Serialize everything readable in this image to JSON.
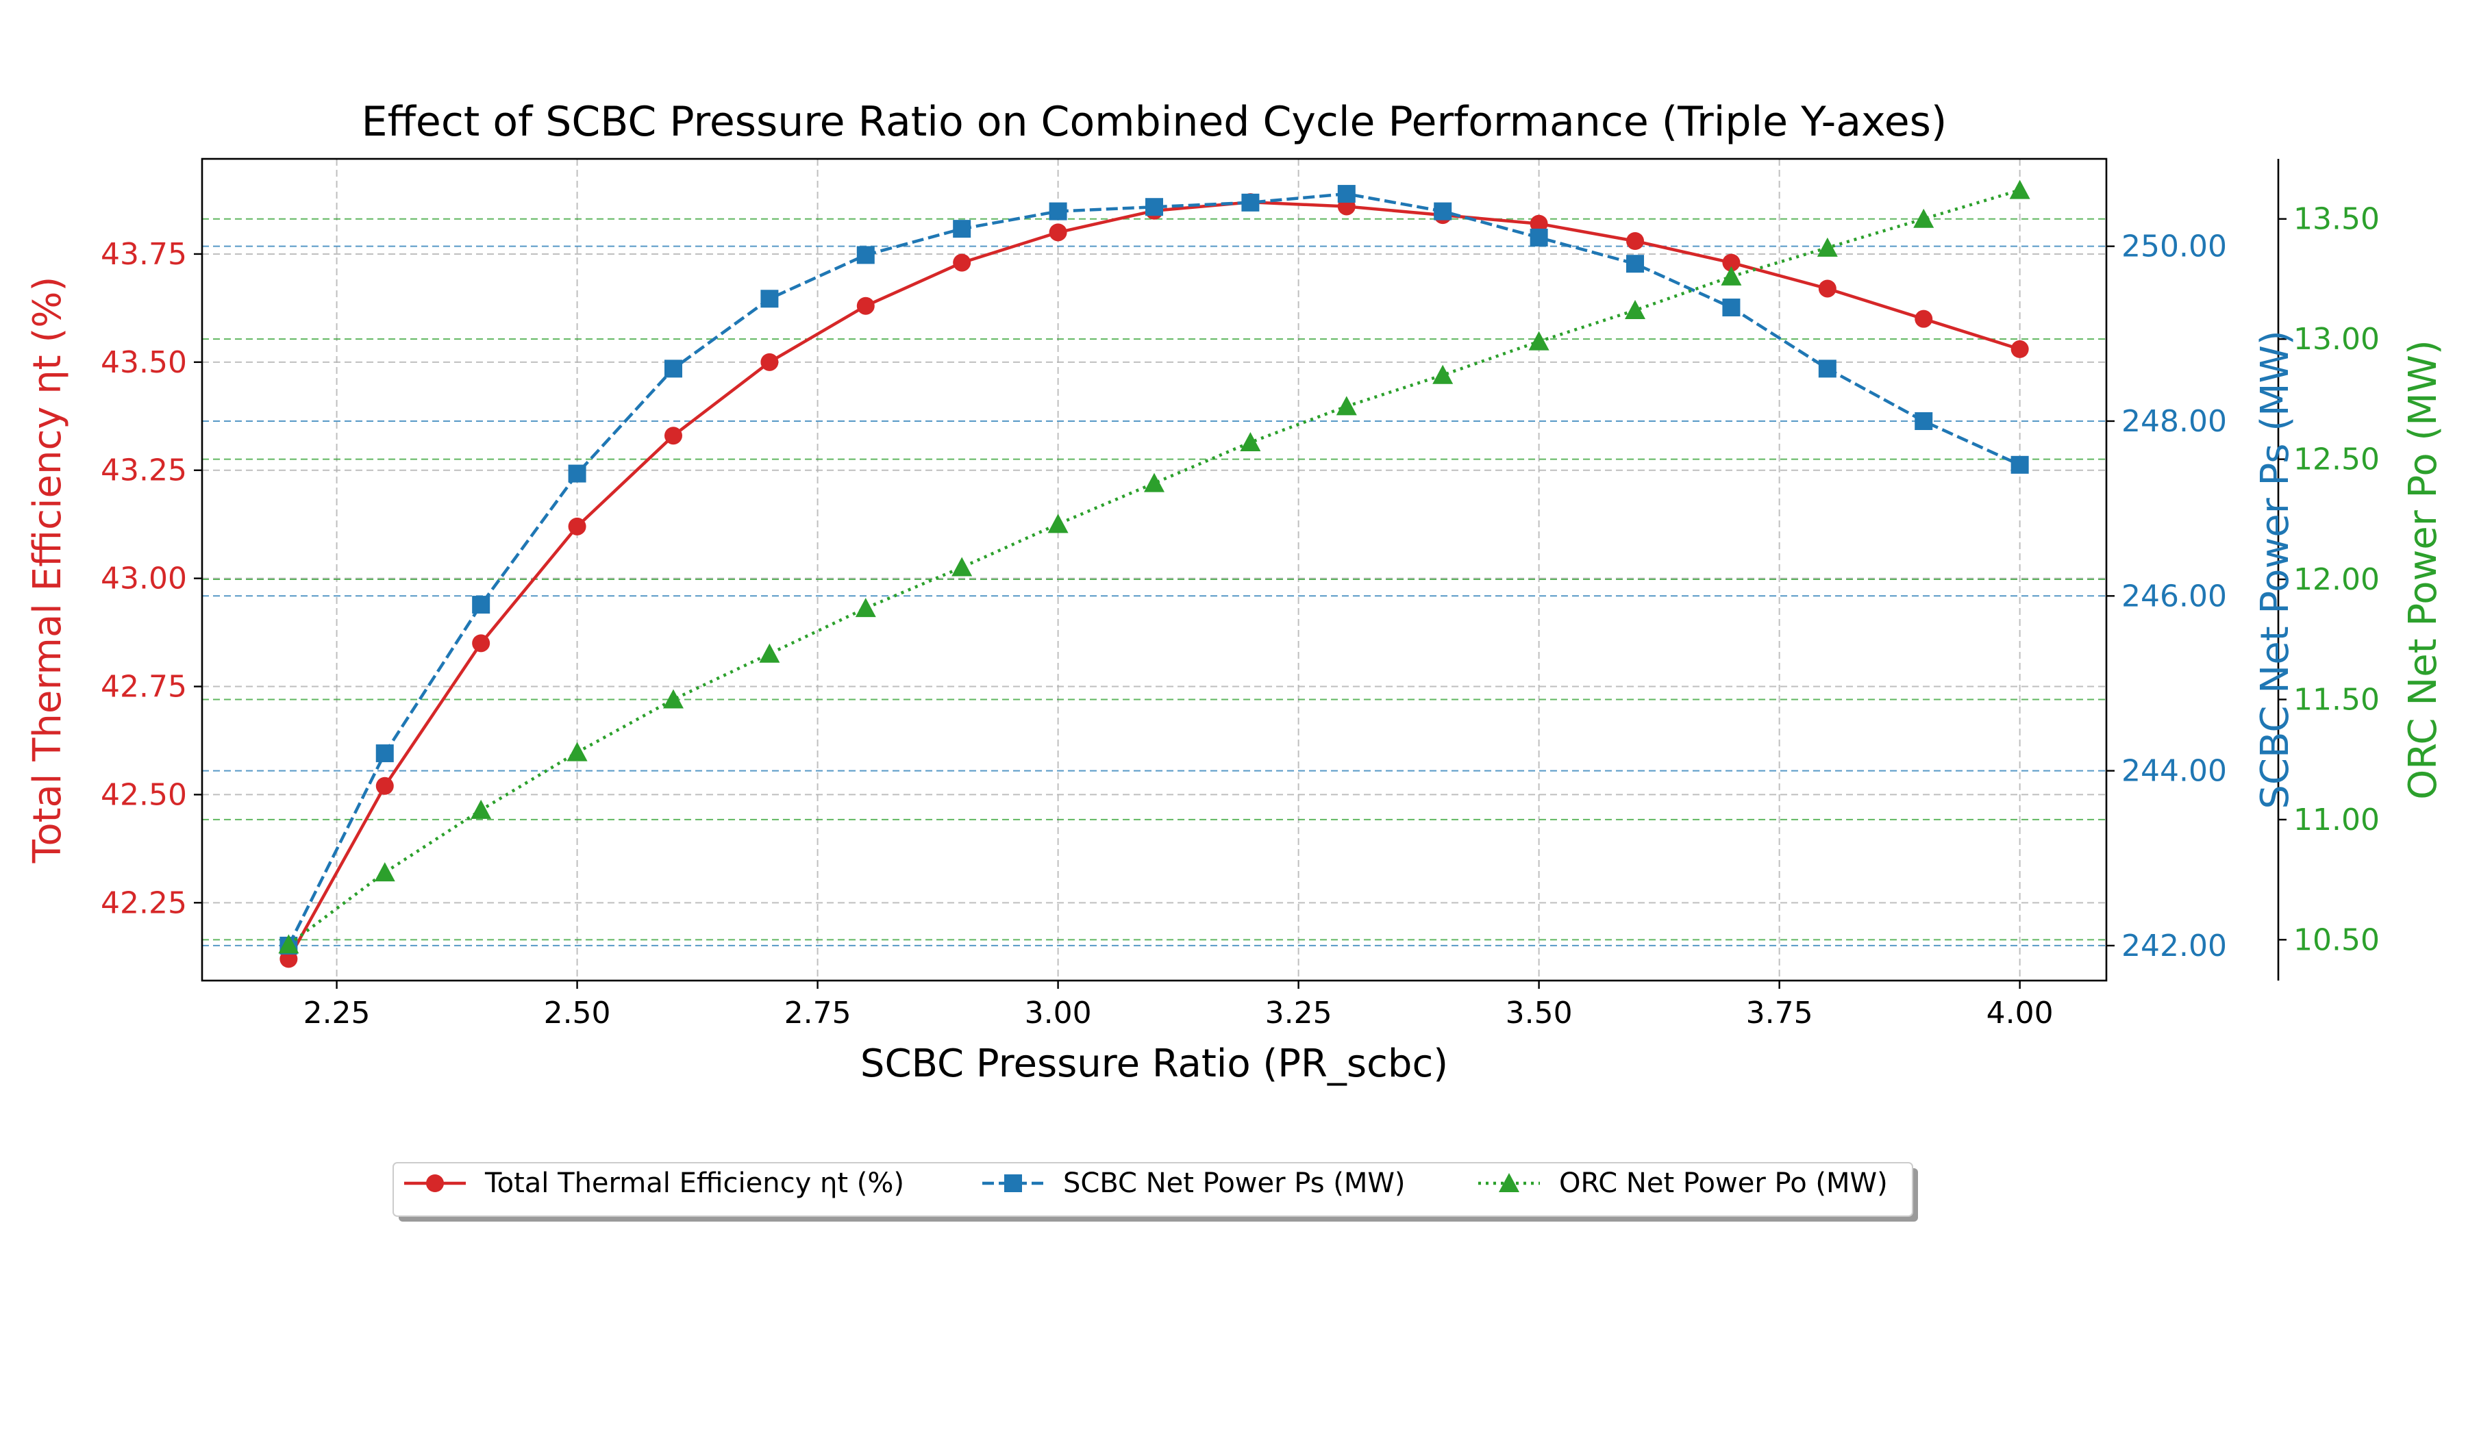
{
  "chart_data": {
    "type": "line",
    "title": "Effect of SCBC Pressure Ratio on Combined Cycle Performance (Triple Y-axes)",
    "xlabel": "SCBC Pressure Ratio (PR_scbc)",
    "x": [
      2.2,
      2.3,
      2.4,
      2.5,
      2.6,
      2.7,
      2.8,
      2.9,
      3.0,
      3.1,
      3.2,
      3.3,
      3.4,
      3.5,
      3.6,
      3.7,
      3.8,
      3.9,
      4.0
    ],
    "xlim": [
      2.11,
      4.09
    ],
    "x_ticks": [
      "2.25",
      "2.50",
      "2.75",
      "3.00",
      "3.25",
      "3.50",
      "3.75",
      "4.00"
    ],
    "grid": true,
    "legend_position": "bottom-center",
    "axes": [
      {
        "id": "y1",
        "side": "left",
        "label": "Total Thermal Efficiency ηt (%)",
        "color": "#d62728",
        "ylim": [
          42.07,
          43.97
        ],
        "ticks": [
          "42.25",
          "42.50",
          "42.75",
          "43.00",
          "43.25",
          "43.50",
          "43.75"
        ]
      },
      {
        "id": "y2",
        "side": "right",
        "label": "SCBC Net Power Ps (MW)",
        "color": "#1f77b4",
        "ylim": [
          241.6,
          251.0
        ],
        "ticks": [
          "242.00",
          "244.00",
          "246.00",
          "248.00",
          "250.00"
        ]
      },
      {
        "id": "y3",
        "side": "right-outer",
        "label": "ORC Net Power Po (MW)",
        "color": "#2ca02c",
        "ylim": [
          10.33,
          13.75
        ],
        "ticks": [
          "10.50",
          "11.00",
          "11.50",
          "12.00",
          "12.50",
          "13.00",
          "13.50"
        ]
      }
    ],
    "series": [
      {
        "name": "Total Thermal Efficiency ηt (%)",
        "axis": "y1",
        "color": "#d62728",
        "line_style": "solid",
        "marker": "circle",
        "values": [
          42.12,
          42.52,
          42.85,
          43.12,
          43.33,
          43.5,
          43.63,
          43.73,
          43.8,
          43.85,
          43.87,
          43.86,
          43.84,
          43.82,
          43.78,
          43.73,
          43.67,
          43.6,
          43.53
        ]
      },
      {
        "name": "SCBC Net Power Ps (MW)",
        "axis": "y2",
        "color": "#1f77b4",
        "line_style": "dashed",
        "marker": "square",
        "values": [
          242.0,
          244.2,
          245.9,
          247.4,
          248.6,
          249.4,
          249.9,
          250.2,
          250.4,
          250.45,
          250.5,
          250.6,
          250.4,
          250.1,
          249.8,
          249.3,
          248.6,
          248.0,
          247.5
        ]
      },
      {
        "name": "ORC Net Power Po (MW)",
        "axis": "y3",
        "color": "#2ca02c",
        "line_style": "dotted",
        "marker": "triangle",
        "values": [
          10.48,
          10.78,
          11.04,
          11.28,
          11.5,
          11.69,
          11.88,
          12.05,
          12.23,
          12.4,
          12.57,
          12.72,
          12.85,
          12.99,
          13.12,
          13.26,
          13.38,
          13.5,
          13.62
        ]
      }
    ]
  }
}
